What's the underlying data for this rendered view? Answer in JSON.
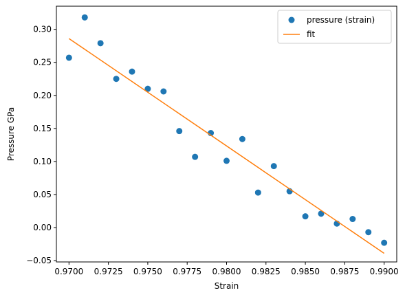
{
  "chart_data": {
    "type": "scatter",
    "xlabel": "Strain",
    "ylabel": "Pressure GPa",
    "xlim": [
      0.9692,
      0.9908
    ],
    "ylim": [
      -0.052,
      0.335
    ],
    "xticks": [
      0.97,
      0.9725,
      0.975,
      0.9775,
      0.98,
      0.9825,
      0.985,
      0.9875,
      0.99
    ],
    "xtick_labels": [
      "0.9700",
      "0.9725",
      "0.9750",
      "0.9775",
      "0.9800",
      "0.9825",
      "0.9850",
      "0.9875",
      "0.9900"
    ],
    "yticks": [
      -0.05,
      0.0,
      0.05,
      0.1,
      0.15,
      0.2,
      0.25,
      0.3
    ],
    "ytick_labels": [
      "−0.05",
      "0.00",
      "0.05",
      "0.10",
      "0.15",
      "0.20",
      "0.25",
      "0.30"
    ],
    "grid": false,
    "legend_position": "top-right",
    "series": [
      {
        "name": "pressure (strain)",
        "kind": "points",
        "color": "#1f77b4",
        "x": [
          0.97,
          0.971,
          0.972,
          0.973,
          0.974,
          0.975,
          0.976,
          0.977,
          0.978,
          0.979,
          0.98,
          0.981,
          0.982,
          0.983,
          0.984,
          0.985,
          0.986,
          0.987,
          0.988,
          0.989,
          0.99
        ],
        "y": [
          0.257,
          0.318,
          0.279,
          0.225,
          0.236,
          0.21,
          0.206,
          0.146,
          0.107,
          0.143,
          0.101,
          0.134,
          0.053,
          0.093,
          0.055,
          0.017,
          0.021,
          0.006,
          0.013,
          -0.007,
          -0.023
        ]
      },
      {
        "name": "fit",
        "kind": "line",
        "color": "#ff7f0e",
        "x": [
          0.97,
          0.99
        ],
        "y": [
          0.286,
          -0.039
        ]
      }
    ]
  }
}
